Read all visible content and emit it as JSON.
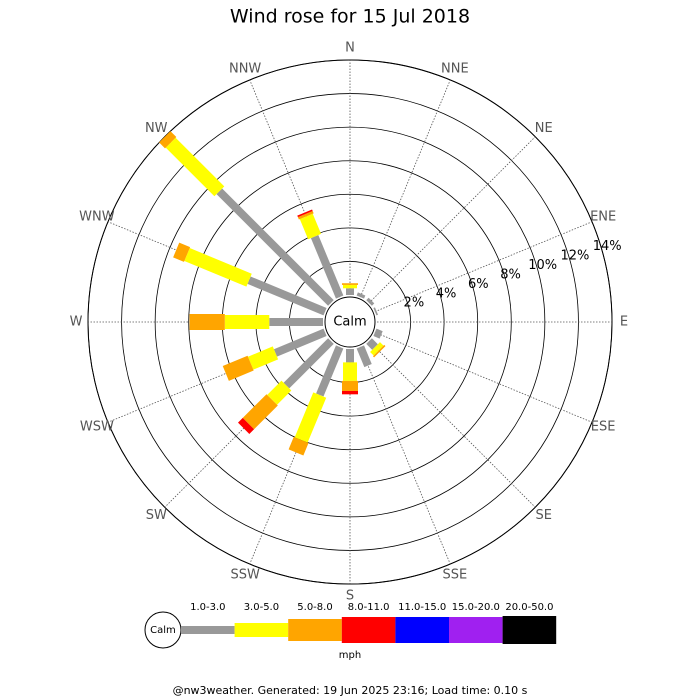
{
  "chart_data": {
    "type": "windrose",
    "title": "Wind rose for 15 Jul 2018",
    "categories": [
      "N",
      "NNE",
      "NE",
      "ENE",
      "E",
      "ESE",
      "SE",
      "SSE",
      "S",
      "SSW",
      "SW",
      "WSW",
      "W",
      "WNW",
      "NW",
      "NNW"
    ],
    "series": [
      {
        "name": "1.0-3.0",
        "color": "#999999",
        "values": [
          0.4,
          0.2,
          0.2,
          0.1,
          0,
          0.4,
          0.5,
          1.2,
          0.8,
          3.1,
          3.75,
          3.2,
          3.2,
          4.9,
          9.4,
          3.9
        ]
      },
      {
        "name": "3.0-5.0",
        "color": "#ffff00",
        "values": [
          0.2,
          0,
          0,
          0,
          0,
          0,
          0.3,
          0,
          1.1,
          2.9,
          1.2,
          1.6,
          2.65,
          4.0,
          4.1,
          1.3
        ]
      },
      {
        "name": "5.0-8.0",
        "color": "#ffa500",
        "values": [
          0.1,
          0,
          0,
          0,
          0,
          0,
          0.1,
          0,
          0.6,
          0.8,
          2.0,
          1.6,
          2.1,
          0.7,
          0.5,
          0.15
        ]
      },
      {
        "name": "8.0-11.0",
        "color": "#ff0000",
        "values": [
          0,
          0,
          0,
          0,
          0,
          0,
          0,
          0,
          0.2,
          0,
          0.4,
          0,
          0,
          0,
          0,
          0.1
        ]
      },
      {
        "name": "11.0-15.0",
        "color": "#0000ff",
        "values": [
          0,
          0,
          0,
          0,
          0,
          0,
          0,
          0,
          0,
          0,
          0,
          0,
          0,
          0,
          0,
          0
        ]
      },
      {
        "name": "15.0-20.0",
        "color": "#a020f0",
        "values": [
          0,
          0,
          0,
          0,
          0,
          0,
          0,
          0,
          0,
          0,
          0,
          0,
          0,
          0,
          0,
          0
        ]
      },
      {
        "name": "20.0-50.0",
        "color": "#000000",
        "values": [
          0,
          0,
          0,
          0,
          0,
          0,
          0,
          0,
          0,
          0,
          0,
          0,
          0,
          0,
          0,
          0
        ]
      }
    ],
    "ylim": [
      0,
      14
    ],
    "yticks": [
      {
        "value": 2,
        "label": "2%"
      },
      {
        "value": 4,
        "label": "4%"
      },
      {
        "value": 6,
        "label": "6%"
      },
      {
        "value": 8,
        "label": "8%"
      },
      {
        "value": 10,
        "label": "10%"
      },
      {
        "value": 12,
        "label": "12%"
      },
      {
        "value": 14,
        "label": "14%"
      }
    ],
    "calm_label": "Calm",
    "units_label": "mph"
  },
  "footer": "@nw3weather. Generated: 19 Jun 2025 23:16; Load time: 0.10 s"
}
